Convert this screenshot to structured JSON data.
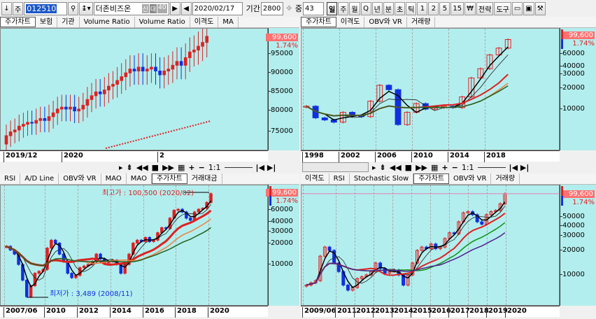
{
  "toolbar": {
    "down": "↓",
    "type": "주",
    "code": "012510",
    "stock_name": "더존비즈온",
    "badges": [
      "신",
      "대",
      "40"
    ],
    "date": "2020/02/17",
    "period_label": "기간",
    "period": "2800",
    "mid_label": "중",
    "mid": "43",
    "periods": [
      "일",
      "주",
      "월",
      "Q",
      "년",
      "분",
      "초",
      "틱",
      "1",
      "2",
      "5",
      "15",
      "₩"
    ],
    "active_period": "일",
    "strategy": "전략",
    "tools": "도구"
  },
  "icons": [
    "search-icon",
    "list-icon",
    "play-icon",
    "back-icon",
    "move-icon",
    "folder-icon",
    "save-icon",
    "wrench-icon"
  ],
  "panels": [
    {
      "tabs": [
        "주가차트",
        "보험",
        "기관",
        "Volume Ratio",
        "Volume Ratio",
        "이격도",
        "MA"
      ],
      "active": "주가차트",
      "price": "99,600",
      "change": "1.74%",
      "yticks": [
        "95000",
        "90000",
        "85000",
        "80000",
        "75000"
      ],
      "xlabels": [
        "2019/12",
        "2020",
        "2"
      ]
    },
    {
      "tabs": [
        "주가차트",
        "이격도",
        "OBV와 VR",
        "거래량"
      ],
      "active": "주가차트",
      "price": "99,600",
      "change": "1.74%",
      "yticks": [
        "60000",
        "40000",
        "30000",
        "20000",
        "10000"
      ],
      "xlabels": [
        "1998",
        "2002",
        "2006",
        "2010",
        "2014",
        "2018"
      ]
    },
    {
      "tabs": [
        "RSI",
        "A/D Line",
        "OBV와 VR",
        "MAO",
        "MAO",
        "주가차트",
        "거래대금"
      ],
      "active": "주가차트",
      "price": "99,600",
      "change": "1.74%",
      "yticks": [
        "60000",
        "40000",
        "30000",
        "20000",
        "10000"
      ],
      "xlabels": [
        "2007/06",
        "2010",
        "2012",
        "2014",
        "2016",
        "2018",
        "2020"
      ],
      "high_note": "최고가 : 100,500 (2020/02)",
      "low_note": "최저가 : 3,489 (2008/11)"
    },
    {
      "tabs": [
        "이격도",
        "RSI",
        "Stochastic Slow",
        "주가차트",
        "OBV와 VR",
        "거래량"
      ],
      "active": "주가차트",
      "price": "99,600",
      "change": "1.74%",
      "yticks": [
        "50000",
        "40000",
        "30000",
        "20000",
        "10000"
      ],
      "xlabels": [
        "2009/06",
        "2011",
        "2012",
        "2013",
        "2014",
        "2015",
        "2016",
        "2017",
        "2018",
        "2019",
        "2020"
      ]
    }
  ],
  "scroll_controls": {
    "zoom": "1:1",
    "plus": "+",
    "minus": "−"
  },
  "colors": {
    "up": "#e02020",
    "down": "#1030e0",
    "bg": "#b3eeee",
    "price_box": "#ff7070"
  },
  "chart_data": [
    {
      "type": "candlestick",
      "scale": "linear",
      "ylim": [
        71000,
        100000
      ],
      "closes": [
        73500,
        74500,
        75000,
        76000,
        76500,
        77000,
        76800,
        77500,
        78000,
        77500,
        78500,
        79500,
        80500,
        81000,
        80500,
        81000,
        80000,
        80500,
        81500,
        83000,
        84000,
        85000,
        84500,
        85500,
        86500,
        87000,
        88000,
        89000,
        90000,
        91000,
        90500,
        91500,
        90500,
        91000,
        91500,
        90500,
        89500,
        90500,
        91000,
        92000,
        93000,
        92000,
        94000,
        95500,
        96000,
        97000,
        98000,
        99600
      ]
    },
    {
      "type": "candlestick",
      "scale": "log",
      "closes": [
        11000,
        7500,
        7000,
        6500,
        9000,
        8000,
        7800,
        13000,
        22000,
        19000,
        6000,
        9000,
        12000,
        10000,
        10500,
        11000,
        10500,
        15000,
        28000,
        38000,
        60000,
        75000,
        99600
      ]
    },
    {
      "type": "candlestick",
      "scale": "log",
      "closes": [
        18000,
        16000,
        14000,
        10000,
        6000,
        3500,
        5000,
        7500,
        8000,
        8500,
        17000,
        22000,
        20000,
        14000,
        11000,
        7500,
        6500,
        7000,
        9000,
        9500,
        10000,
        11000,
        14000,
        12000,
        10500,
        11000,
        11500,
        10000,
        7500,
        10000,
        14000,
        20000,
        22000,
        21000,
        24000,
        21000,
        22000,
        28000,
        33000,
        32000,
        45000,
        58000,
        60000,
        55000,
        45000,
        42000,
        55000,
        60000,
        62000,
        75000,
        99600
      ]
    },
    {
      "type": "candlestick",
      "scale": "log",
      "closes": [
        7500,
        8000,
        8500,
        17000,
        22000,
        20000,
        14000,
        11000,
        7500,
        6500,
        7000,
        9000,
        9500,
        10000,
        11000,
        14000,
        12000,
        10500,
        11000,
        11500,
        10000,
        7500,
        10000,
        14000,
        20000,
        22000,
        21000,
        24000,
        21000,
        22000,
        28000,
        33000,
        32000,
        45000,
        58000,
        60000,
        55000,
        45000,
        42000,
        55000,
        60000,
        62000,
        75000,
        99600
      ]
    }
  ]
}
